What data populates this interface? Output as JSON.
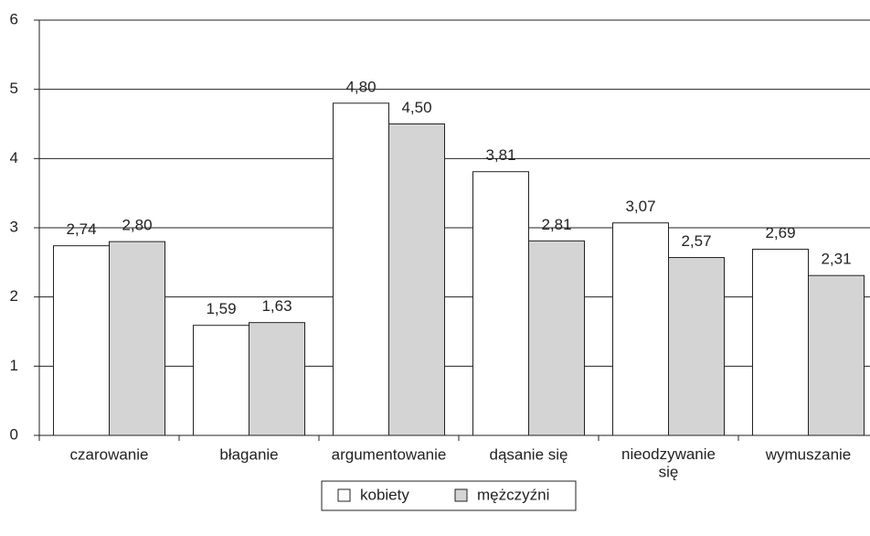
{
  "chart_data": {
    "type": "bar",
    "categories": [
      "czarowanie",
      "błaganie",
      "argumentowanie",
      "dąsanie się",
      "nieodzywanie\nsię",
      "wymuszanie"
    ],
    "series": [
      {
        "name": "kobiety",
        "color": "#ffffff",
        "values": [
          2.74,
          1.59,
          4.8,
          3.81,
          3.07,
          2.69
        ],
        "value_labels": [
          "2,74",
          "1,59",
          "4,80",
          "3,81",
          "3,07",
          "2,69"
        ]
      },
      {
        "name": "mężczyźni",
        "color": "#d4d4d4",
        "values": [
          2.8,
          1.63,
          4.5,
          2.81,
          2.57,
          2.31
        ],
        "value_labels": [
          "2,80",
          "1,63",
          "4,50",
          "2,81",
          "2,57",
          "2,31"
        ]
      }
    ],
    "ylim": [
      0,
      6
    ],
    "yticks": [
      0,
      1,
      2,
      3,
      4,
      5,
      6
    ],
    "grid": true,
    "legend": "bottom"
  }
}
